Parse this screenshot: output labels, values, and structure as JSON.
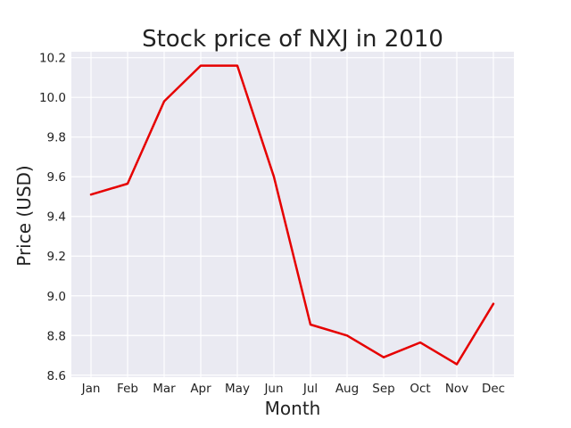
{
  "chart_data": {
    "type": "line",
    "title": "Stock price of NXJ in 2010",
    "xlabel": "Month",
    "ylabel": "Price (USD)",
    "categories": [
      "Jan",
      "Feb",
      "Mar",
      "Apr",
      "May",
      "Jun",
      "Jul",
      "Aug",
      "Sep",
      "Oct",
      "Nov",
      "Dec"
    ],
    "series": [
      {
        "color": "#e60000",
        "values": [
          9.51,
          9.565,
          9.98,
          10.16,
          10.16,
          9.6,
          8.855,
          8.8,
          8.69,
          8.765,
          8.655,
          8.96
        ]
      }
    ],
    "ylim": [
      8.59,
      10.23
    ],
    "yticks": [
      8.6,
      8.8,
      9.0,
      9.2,
      9.4,
      9.6,
      9.8,
      10.0,
      10.2
    ],
    "ytick_labels": [
      "8.6",
      "8.8",
      "9.0",
      "9.2",
      "9.4",
      "9.6",
      "9.8",
      "10.0",
      "10.2"
    ],
    "grid": true,
    "legend": "none"
  }
}
